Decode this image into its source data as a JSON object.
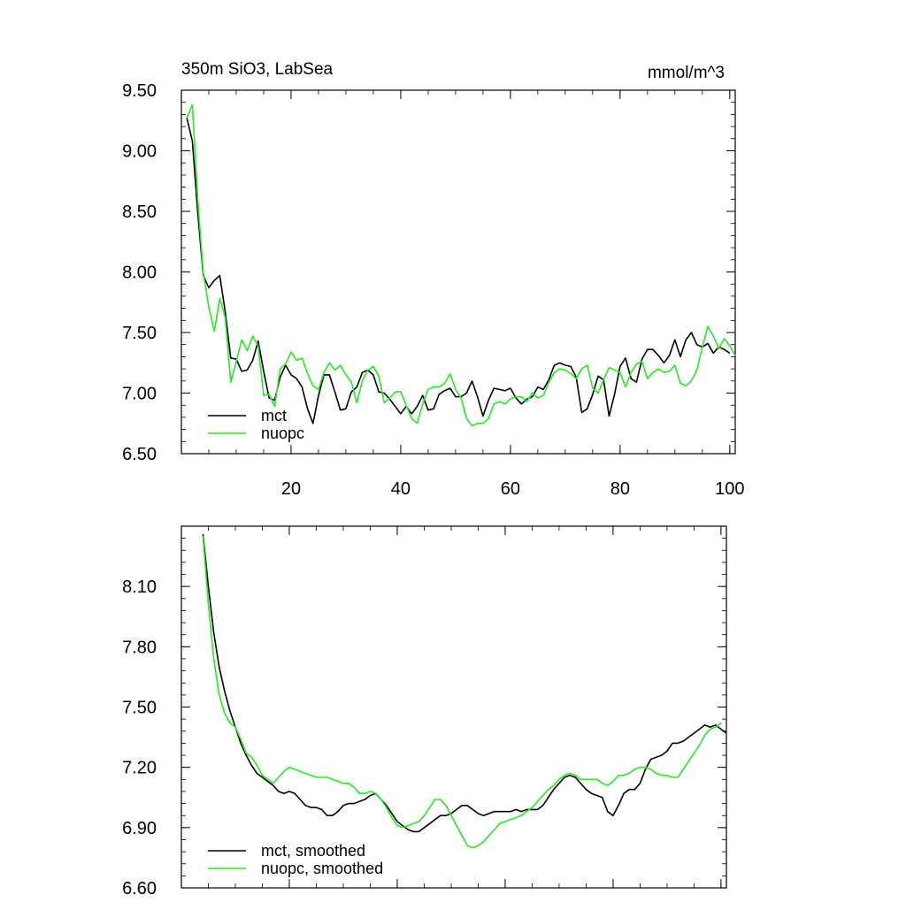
{
  "chart_data": [
    {
      "type": "line",
      "title_left": "350m SiO3, LabSea",
      "title_right": "mmol/m^3",
      "xlabel": "",
      "ylabel": "",
      "xlim": [
        0,
        101
      ],
      "ylim": [
        6.5,
        9.5
      ],
      "xticks": [
        20,
        40,
        60,
        80,
        100
      ],
      "xtick_labels": [
        "20",
        "40",
        "60",
        "80",
        "100"
      ],
      "yticks": [
        6.5,
        7.0,
        7.5,
        8.0,
        8.5,
        9.0,
        9.5
      ],
      "ytick_labels": [
        "6.50",
        "7.00",
        "7.50",
        "8.00",
        "8.50",
        "9.00",
        "9.50"
      ],
      "x_start": 1,
      "legend_position": "bottom-left",
      "grid": false,
      "series": [
        {
          "name": "mct",
          "color": "#000000",
          "values": [
            9.27,
            9.08,
            8.48,
            7.97,
            7.87,
            7.93,
            7.97,
            7.67,
            7.29,
            7.28,
            7.18,
            7.19,
            7.27,
            7.43,
            7.18,
            6.96,
            6.94,
            7.13,
            7.23,
            7.15,
            7.12,
            7.05,
            6.87,
            6.75,
            6.98,
            7.15,
            7.15,
            7.01,
            6.86,
            6.87,
            7.01,
            7.05,
            7.17,
            7.19,
            7.15,
            7.01,
            7.0,
            6.95,
            6.89,
            6.83,
            6.89,
            6.83,
            6.89,
            6.98,
            6.86,
            6.87,
            6.99,
            7.02,
            7.04,
            6.97,
            6.97,
            7.0,
            7.1,
            6.97,
            6.81,
            6.94,
            7.04,
            7.03,
            7.02,
            7.04,
            6.96,
            6.91,
            6.95,
            6.97,
            7.05,
            7.03,
            7.11,
            7.23,
            7.25,
            7.23,
            7.22,
            7.13,
            6.84,
            6.87,
            6.99,
            7.14,
            7.11,
            6.81,
            6.99,
            7.22,
            7.29,
            7.12,
            7.09,
            7.28,
            7.36,
            7.36,
            7.31,
            7.25,
            7.31,
            7.44,
            7.3,
            7.44,
            7.5,
            7.4,
            7.38,
            7.41,
            7.33,
            7.38,
            7.36,
            7.33
          ]
        },
        {
          "name": "nuopc",
          "color": "#22ee22",
          "values": [
            9.27,
            9.38,
            8.59,
            7.99,
            7.71,
            7.51,
            7.78,
            7.62,
            7.09,
            7.26,
            7.44,
            7.35,
            7.47,
            7.39,
            6.98,
            6.99,
            6.89,
            7.2,
            7.24,
            7.34,
            7.27,
            7.29,
            7.16,
            7.06,
            7.03,
            7.17,
            7.25,
            7.19,
            7.23,
            7.15,
            7.09,
            6.92,
            7.1,
            7.19,
            7.22,
            7.14,
            6.92,
            6.96,
            7.01,
            7.01,
            6.9,
            6.79,
            6.75,
            6.91,
            7.03,
            7.05,
            7.05,
            7.08,
            7.16,
            7.03,
            6.96,
            6.79,
            6.73,
            6.75,
            6.75,
            6.79,
            6.91,
            6.93,
            6.91,
            6.95,
            6.97,
            6.97,
            6.93,
            7.0,
            6.96,
            6.98,
            7.09,
            7.17,
            7.2,
            7.19,
            7.16,
            7.12,
            7.2,
            7.23,
            7.04,
            7.0,
            7.11,
            7.21,
            7.19,
            7.17,
            7.05,
            7.17,
            7.24,
            7.26,
            7.12,
            7.17,
            7.2,
            7.17,
            7.18,
            7.23,
            7.08,
            7.06,
            7.1,
            7.19,
            7.38,
            7.55,
            7.47,
            7.37,
            7.45,
            7.39,
            7.31
          ]
        }
      ]
    },
    {
      "type": "line",
      "title": "",
      "xlabel": "",
      "ylabel": "",
      "xlim": [
        0,
        101
      ],
      "ylim": [
        6.6,
        8.4
      ],
      "xticks": [
        20,
        40,
        60,
        80,
        100
      ],
      "xtick_labels": [
        "",
        "",
        "",
        "",
        ""
      ],
      "yticks": [
        6.6,
        6.9,
        7.2,
        7.5,
        7.8,
        8.1
      ],
      "ytick_labels": [
        "6.60",
        "6.90",
        "7.20",
        "7.50",
        "7.80",
        "8.10"
      ],
      "x_start": 4,
      "legend_position": "bottom-left",
      "grid": false,
      "series": [
        {
          "name": "mct, smoothed",
          "color": "#000000",
          "values": [
            8.36,
            8.1,
            7.87,
            7.7,
            7.58,
            7.48,
            7.4,
            7.32,
            7.26,
            7.21,
            7.17,
            7.15,
            7.13,
            7.11,
            7.08,
            7.07,
            7.08,
            7.07,
            7.04,
            7.01,
            7.0,
            7.0,
            6.99,
            6.96,
            6.96,
            6.98,
            7.01,
            7.02,
            7.02,
            7.03,
            7.04,
            7.06,
            7.07,
            7.04,
            7.01,
            6.97,
            6.93,
            6.91,
            6.89,
            6.88,
            6.88,
            6.9,
            6.92,
            6.94,
            6.96,
            6.96,
            6.97,
            6.99,
            7.01,
            7.01,
            6.99,
            6.97,
            6.96,
            6.97,
            6.98,
            6.98,
            6.98,
            6.98,
            6.99,
            6.98,
            6.99,
            6.99,
            6.99,
            7.01,
            7.05,
            7.09,
            7.12,
            7.15,
            7.16,
            7.15,
            7.12,
            7.09,
            7.07,
            7.06,
            7.05,
            6.98,
            6.96,
            7.01,
            7.07,
            7.09,
            7.09,
            7.12,
            7.19,
            7.24,
            7.25,
            7.26,
            7.28,
            7.32,
            7.32,
            7.33,
            7.35,
            7.37,
            7.39,
            7.41,
            7.4,
            7.41,
            7.39,
            7.37
          ]
        },
        {
          "name": "nuopc, smoothed",
          "color": "#22ee22",
          "values": [
            8.35,
            8.01,
            7.74,
            7.56,
            7.47,
            7.42,
            7.4,
            7.34,
            7.27,
            7.25,
            7.21,
            7.16,
            7.14,
            7.12,
            7.15,
            7.18,
            7.2,
            7.19,
            7.18,
            7.17,
            7.16,
            7.15,
            7.15,
            7.15,
            7.14,
            7.13,
            7.12,
            7.12,
            7.1,
            7.07,
            7.07,
            7.08,
            7.07,
            7.04,
            7.0,
            6.95,
            6.91,
            6.9,
            6.91,
            6.92,
            6.93,
            6.96,
            7.0,
            7.04,
            7.04,
            7.01,
            6.96,
            6.91,
            6.86,
            6.81,
            6.8,
            6.81,
            6.83,
            6.86,
            6.89,
            6.92,
            6.93,
            6.94,
            6.95,
            6.96,
            6.98,
            7.0,
            7.03,
            7.06,
            7.09,
            7.11,
            7.14,
            7.16,
            7.17,
            7.16,
            7.14,
            7.14,
            7.14,
            7.14,
            7.12,
            7.11,
            7.13,
            7.16,
            7.16,
            7.17,
            7.19,
            7.2,
            7.2,
            7.19,
            7.17,
            7.16,
            7.16,
            7.15,
            7.15,
            7.19,
            7.23,
            7.27,
            7.31,
            7.36,
            7.39,
            7.4,
            7.42
          ]
        }
      ]
    }
  ]
}
